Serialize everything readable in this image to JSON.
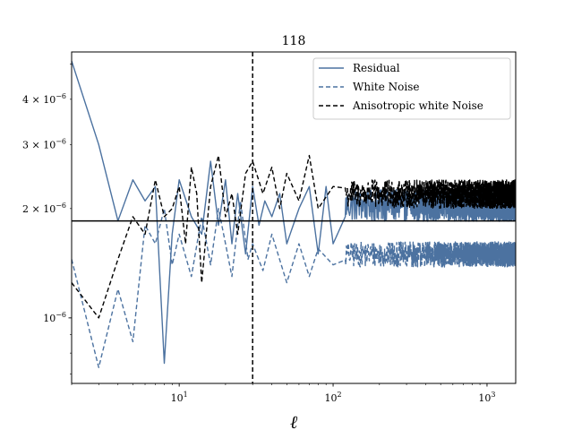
{
  "chart_data": {
    "type": "line",
    "title": "118",
    "xlabel": "ℓ",
    "ylabel": "",
    "xscale": "log",
    "yscale": "log",
    "xlim": [
      2,
      1536
    ],
    "ylim": [
      6.6e-07,
      5.4e-06
    ],
    "x_ticks": [
      {
        "value": 10,
        "label_base": "10",
        "label_exp": "1"
      },
      {
        "value": 100,
        "label_base": "10",
        "label_exp": "2"
      },
      {
        "value": 1000,
        "label_base": "10",
        "label_exp": "3"
      }
    ],
    "y_ticks": [
      {
        "value": 1e-06,
        "label_base": "10",
        "label_exp": "−6",
        "label_prefix": ""
      },
      {
        "value": 2e-06,
        "label_base": "10",
        "label_exp": "−6",
        "label_prefix": "2 × "
      },
      {
        "value": 3e-06,
        "label_base": "10",
        "label_exp": "−6",
        "label_prefix": "3 × "
      },
      {
        "value": 4e-06,
        "label_base": "10",
        "label_exp": "−6",
        "label_prefix": "4 × "
      }
    ],
    "legend_position": "top-right",
    "series": [
      {
        "name": "Residual",
        "color": "#4c72a0",
        "dash": "solid",
        "noise_level": 2.05e-06,
        "noise_amplitude": 0.1,
        "points": [
          [
            2,
            5.1e-06
          ],
          [
            3,
            3e-06
          ],
          [
            4,
            1.85e-06
          ],
          [
            5,
            2.4e-06
          ],
          [
            6,
            2.1e-06
          ],
          [
            7,
            2.3e-06
          ],
          [
            8,
            7.5e-07
          ],
          [
            9,
            1.7e-06
          ],
          [
            10,
            2.4e-06
          ],
          [
            12,
            1.9e-06
          ],
          [
            14,
            1.7e-06
          ],
          [
            16,
            2.7e-06
          ],
          [
            18,
            1.8e-06
          ],
          [
            20,
            2.4e-06
          ],
          [
            22,
            1.6e-06
          ],
          [
            24,
            2.2e-06
          ],
          [
            27,
            1.5e-06
          ],
          [
            30,
            2.3e-06
          ],
          [
            33,
            1.8e-06
          ],
          [
            36,
            2.1e-06
          ],
          [
            40,
            1.9e-06
          ],
          [
            45,
            2.2e-06
          ],
          [
            50,
            1.6e-06
          ],
          [
            60,
            2e-06
          ],
          [
            70,
            2.3e-06
          ],
          [
            80,
            1.5e-06
          ],
          [
            90,
            2.3e-06
          ],
          [
            100,
            1.6e-06
          ],
          [
            120,
            1.9e-06
          ],
          [
            150,
            2.1e-06
          ],
          [
            200,
            2.05e-06
          ],
          [
            300,
            2.1e-06
          ],
          [
            500,
            2.05e-06
          ],
          [
            800,
            2.05e-06
          ],
          [
            1536,
            2.05e-06
          ]
        ]
      },
      {
        "name": "White Noise",
        "color": "#4c72a0",
        "dash": "dashed",
        "noise_level": 1.5e-06,
        "noise_amplitude": 0.08,
        "points": [
          [
            2,
            1.45e-06
          ],
          [
            3,
            7.3e-07
          ],
          [
            4,
            1.2e-06
          ],
          [
            5,
            8.6e-07
          ],
          [
            6,
            1.8e-06
          ],
          [
            7,
            1.6e-06
          ],
          [
            8,
            2e-06
          ],
          [
            9,
            1.4e-06
          ],
          [
            10,
            1.7e-06
          ],
          [
            12,
            1.3e-06
          ],
          [
            14,
            1.9e-06
          ],
          [
            16,
            1.4e-06
          ],
          [
            18,
            2e-06
          ],
          [
            20,
            1.6e-06
          ],
          [
            22,
            1.3e-06
          ],
          [
            25,
            2.1e-06
          ],
          [
            28,
            1.45e-06
          ],
          [
            30,
            1.6e-06
          ],
          [
            35,
            1.35e-06
          ],
          [
            40,
            1.7e-06
          ],
          [
            50,
            1.25e-06
          ],
          [
            60,
            1.6e-06
          ],
          [
            70,
            1.3e-06
          ],
          [
            80,
            1.55e-06
          ],
          [
            100,
            1.4e-06
          ],
          [
            150,
            1.5e-06
          ],
          [
            200,
            1.5e-06
          ],
          [
            500,
            1.5e-06
          ],
          [
            1000,
            1.5e-06
          ],
          [
            1536,
            1.5e-06
          ]
        ]
      },
      {
        "name": "Anisotropic white Noise",
        "color": "#000000",
        "dash": "dashed",
        "noise_level": 2.2e-06,
        "noise_amplitude": 0.09,
        "points": [
          [
            2,
            1.25e-06
          ],
          [
            3,
            1e-06
          ],
          [
            4,
            1.45e-06
          ],
          [
            5,
            1.9e-06
          ],
          [
            6,
            1.7e-06
          ],
          [
            7,
            2.4e-06
          ],
          [
            8,
            1.9e-06
          ],
          [
            9,
            2e-06
          ],
          [
            10,
            2.3e-06
          ],
          [
            11,
            1.6e-06
          ],
          [
            12,
            2.6e-06
          ],
          [
            13,
            2.2e-06
          ],
          [
            14,
            1.25e-06
          ],
          [
            16,
            2.3e-06
          ],
          [
            18,
            2.8e-06
          ],
          [
            20,
            1.9e-06
          ],
          [
            22,
            2.2e-06
          ],
          [
            24,
            1.7e-06
          ],
          [
            27,
            2.5e-06
          ],
          [
            30,
            2.7e-06
          ],
          [
            35,
            2.2e-06
          ],
          [
            40,
            2.6e-06
          ],
          [
            45,
            2e-06
          ],
          [
            50,
            2.5e-06
          ],
          [
            60,
            2.1e-06
          ],
          [
            70,
            2.8e-06
          ],
          [
            80,
            2e-06
          ],
          [
            100,
            2.3e-06
          ],
          [
            150,
            2.25e-06
          ],
          [
            200,
            2.2e-06
          ],
          [
            500,
            2.2e-06
          ],
          [
            1000,
            2.2e-06
          ],
          [
            1536,
            2.2e-06
          ]
        ]
      }
    ],
    "annotations": {
      "vertical_line_x": 30,
      "horizontal_line_y": 1.85e-06
    }
  }
}
